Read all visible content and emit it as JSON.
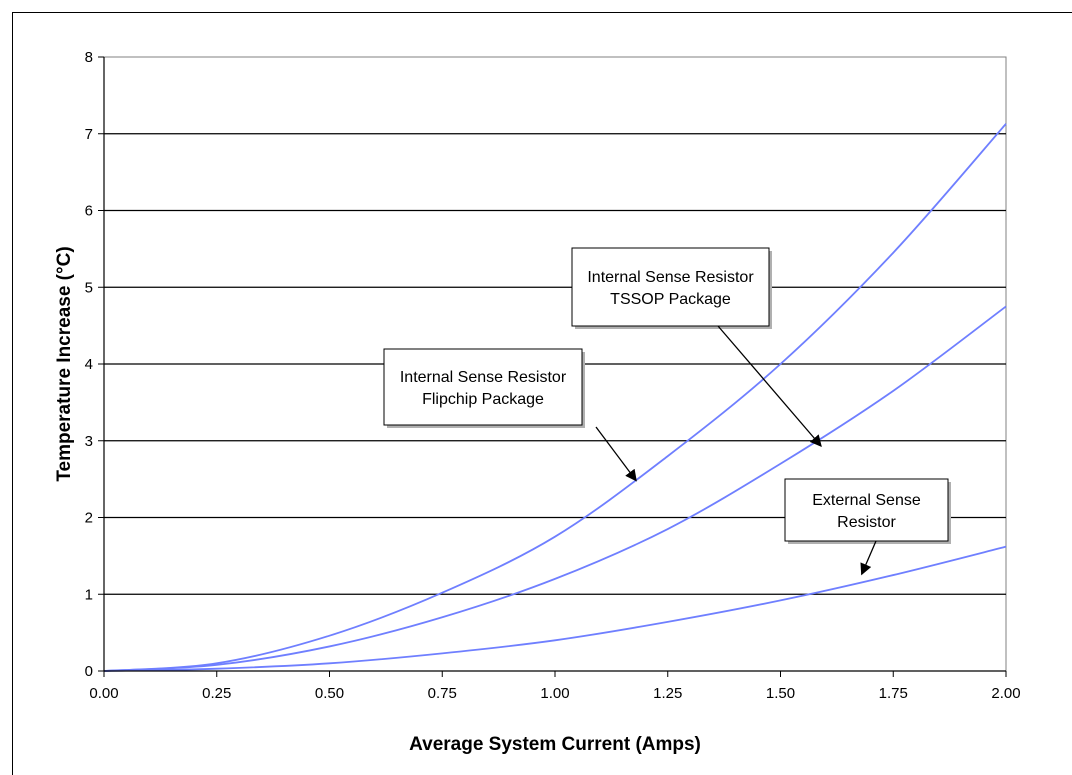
{
  "chart_data": {
    "type": "line",
    "title": "",
    "xlabel": "Average System Current (Amps)",
    "ylabel": "Temperature Increase (°C)",
    "xlim": [
      0,
      2
    ],
    "ylim": [
      0,
      8
    ],
    "x_ticks": [
      "0.00",
      "0.25",
      "0.50",
      "0.75",
      "1.00",
      "1.25",
      "1.50",
      "1.75",
      "2.00"
    ],
    "y_ticks": [
      "0",
      "1",
      "2",
      "3",
      "4",
      "5",
      "6",
      "7",
      "8"
    ],
    "grid": "horizontal",
    "line_color": "#6f7fff",
    "x": [
      0,
      0.25,
      0.5,
      0.75,
      1.0,
      1.25,
      1.5,
      1.75,
      2.0
    ],
    "series": [
      {
        "values": [
          0,
          0.1,
          0.46,
          1.02,
          1.75,
          2.8,
          4.0,
          5.45,
          7.13
        ]
      },
      {
        "values": [
          0,
          0.08,
          0.32,
          0.7,
          1.2,
          1.85,
          2.7,
          3.65,
          4.75
        ]
      },
      {
        "values": [
          0,
          0.03,
          0.1,
          0.23,
          0.4,
          0.64,
          0.92,
          1.25,
          1.62
        ]
      }
    ],
    "annotations": [
      {
        "lines": [
          "Internal Sense Resistor",
          "TSSOP Package"
        ],
        "target": [
          1.59,
          2.93
        ]
      },
      {
        "lines": [
          "Internal Sense Resistor",
          "Flipchip Package"
        ],
        "target": [
          1.18,
          2.48
        ]
      },
      {
        "lines": [
          "External Sense",
          "Resistor"
        ],
        "target": [
          1.68,
          1.26
        ]
      }
    ]
  }
}
